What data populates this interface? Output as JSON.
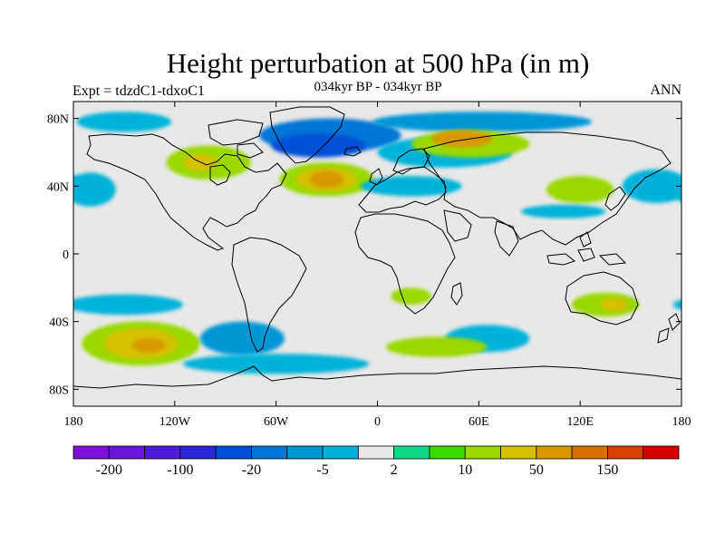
{
  "title": "Height perturbation at 500 hPa (in m)",
  "subtitle": "034kyr BP - 034kyr BP",
  "left_label": "Expt = tdzdC1-tdxoC1",
  "right_label": "ANN",
  "map": {
    "projection": "cylindrical-equidistant",
    "lon_range": [
      -180,
      180
    ],
    "lat_range": [
      -90,
      90
    ],
    "background_fill": "#e8e8e8",
    "coastline_color": "#000000"
  },
  "axes": {
    "lat_ticks": [
      {
        "value": 80,
        "label": "80N"
      },
      {
        "value": 40,
        "label": "40N"
      },
      {
        "value": 0,
        "label": "0"
      },
      {
        "value": -40,
        "label": "40S"
      },
      {
        "value": -80,
        "label": "80S"
      }
    ],
    "lon_ticks": [
      {
        "value": -180,
        "label": "180"
      },
      {
        "value": -120,
        "label": "120W"
      },
      {
        "value": -60,
        "label": "60W"
      },
      {
        "value": 0,
        "label": "0"
      },
      {
        "value": 60,
        "label": "60E"
      },
      {
        "value": 120,
        "label": "120E"
      },
      {
        "value": 180,
        "label": "180"
      }
    ]
  },
  "colorbar": {
    "colors": [
      "#7d10d8",
      "#6a16d8",
      "#4d1ed8",
      "#2c26d9",
      "#0050d6",
      "#0076d6",
      "#0096d6",
      "#00b2d8",
      "#e8e8e8",
      "#10d888",
      "#38d800",
      "#9ad800",
      "#d6c000",
      "#d89800",
      "#d87000",
      "#d84000",
      "#d80000"
    ],
    "labels": [
      {
        "boundary": 1,
        "text": "-200"
      },
      {
        "boundary": 3,
        "text": "-100"
      },
      {
        "boundary": 5,
        "text": "-20"
      },
      {
        "boundary": 7,
        "text": "-5"
      },
      {
        "boundary": 9,
        "text": "2"
      },
      {
        "boundary": 11,
        "text": "10"
      },
      {
        "boundary": 13,
        "text": "50"
      },
      {
        "boundary": 15,
        "text": "150"
      }
    ]
  },
  "field": {
    "blobs": [
      {
        "lon": -28,
        "lat": 70,
        "rx": 42,
        "ry": 10,
        "level": 5
      },
      {
        "lon": -35,
        "lat": 64,
        "rx": 28,
        "ry": 7,
        "level": 4
      },
      {
        "lon": 62,
        "lat": 78,
        "rx": 65,
        "ry": 6,
        "level": 6
      },
      {
        "lon": 40,
        "lat": 60,
        "rx": 40,
        "ry": 9,
        "level": 7
      },
      {
        "lon": -150,
        "lat": 78,
        "rx": 28,
        "ry": 6,
        "level": 7
      },
      {
        "lon": -100,
        "lat": 54,
        "rx": 25,
        "ry": 10,
        "level": 11
      },
      {
        "lon": -105,
        "lat": 54,
        "rx": 10,
        "ry": 5,
        "level": 12
      },
      {
        "lon": -30,
        "lat": 44,
        "rx": 28,
        "ry": 10,
        "level": 11
      },
      {
        "lon": -30,
        "lat": 44,
        "rx": 18,
        "ry": 7,
        "level": 12
      },
      {
        "lon": -30,
        "lat": 44,
        "rx": 10,
        "ry": 5,
        "level": 13
      },
      {
        "lon": 55,
        "lat": 65,
        "rx": 35,
        "ry": 8,
        "level": 11
      },
      {
        "lon": 50,
        "lat": 68,
        "rx": 18,
        "ry": 5,
        "level": 13
      },
      {
        "lon": 120,
        "lat": 38,
        "rx": 20,
        "ry": 8,
        "level": 11
      },
      {
        "lon": -170,
        "lat": 38,
        "rx": 15,
        "ry": 10,
        "level": 7
      },
      {
        "lon": 165,
        "lat": 40,
        "rx": 20,
        "ry": 10,
        "level": 7
      },
      {
        "lon": 20,
        "lat": 40,
        "rx": 30,
        "ry": 6,
        "level": 7
      },
      {
        "lon": 110,
        "lat": 25,
        "rx": 25,
        "ry": 4,
        "level": 7
      },
      {
        "lon": -140,
        "lat": -53,
        "rx": 35,
        "ry": 13,
        "level": 11
      },
      {
        "lon": -140,
        "lat": -53,
        "rx": 22,
        "ry": 9,
        "level": 12
      },
      {
        "lon": -135,
        "lat": -54,
        "rx": 10,
        "ry": 4,
        "level": 13
      },
      {
        "lon": -150,
        "lat": -30,
        "rx": 35,
        "ry": 6,
        "level": 7
      },
      {
        "lon": -80,
        "lat": -50,
        "rx": 25,
        "ry": 10,
        "level": 6
      },
      {
        "lon": -60,
        "lat": -65,
        "rx": 55,
        "ry": 6,
        "level": 7
      },
      {
        "lon": 135,
        "lat": -30,
        "rx": 20,
        "ry": 7,
        "level": 11
      },
      {
        "lon": 140,
        "lat": -30,
        "rx": 8,
        "ry": 4,
        "level": 12
      },
      {
        "lon": 65,
        "lat": -50,
        "rx": 25,
        "ry": 8,
        "level": 7
      },
      {
        "lon": 20,
        "lat": -25,
        "rx": 12,
        "ry": 5,
        "level": 11
      },
      {
        "lon": 35,
        "lat": -55,
        "rx": 30,
        "ry": 6,
        "level": 11
      }
    ]
  }
}
